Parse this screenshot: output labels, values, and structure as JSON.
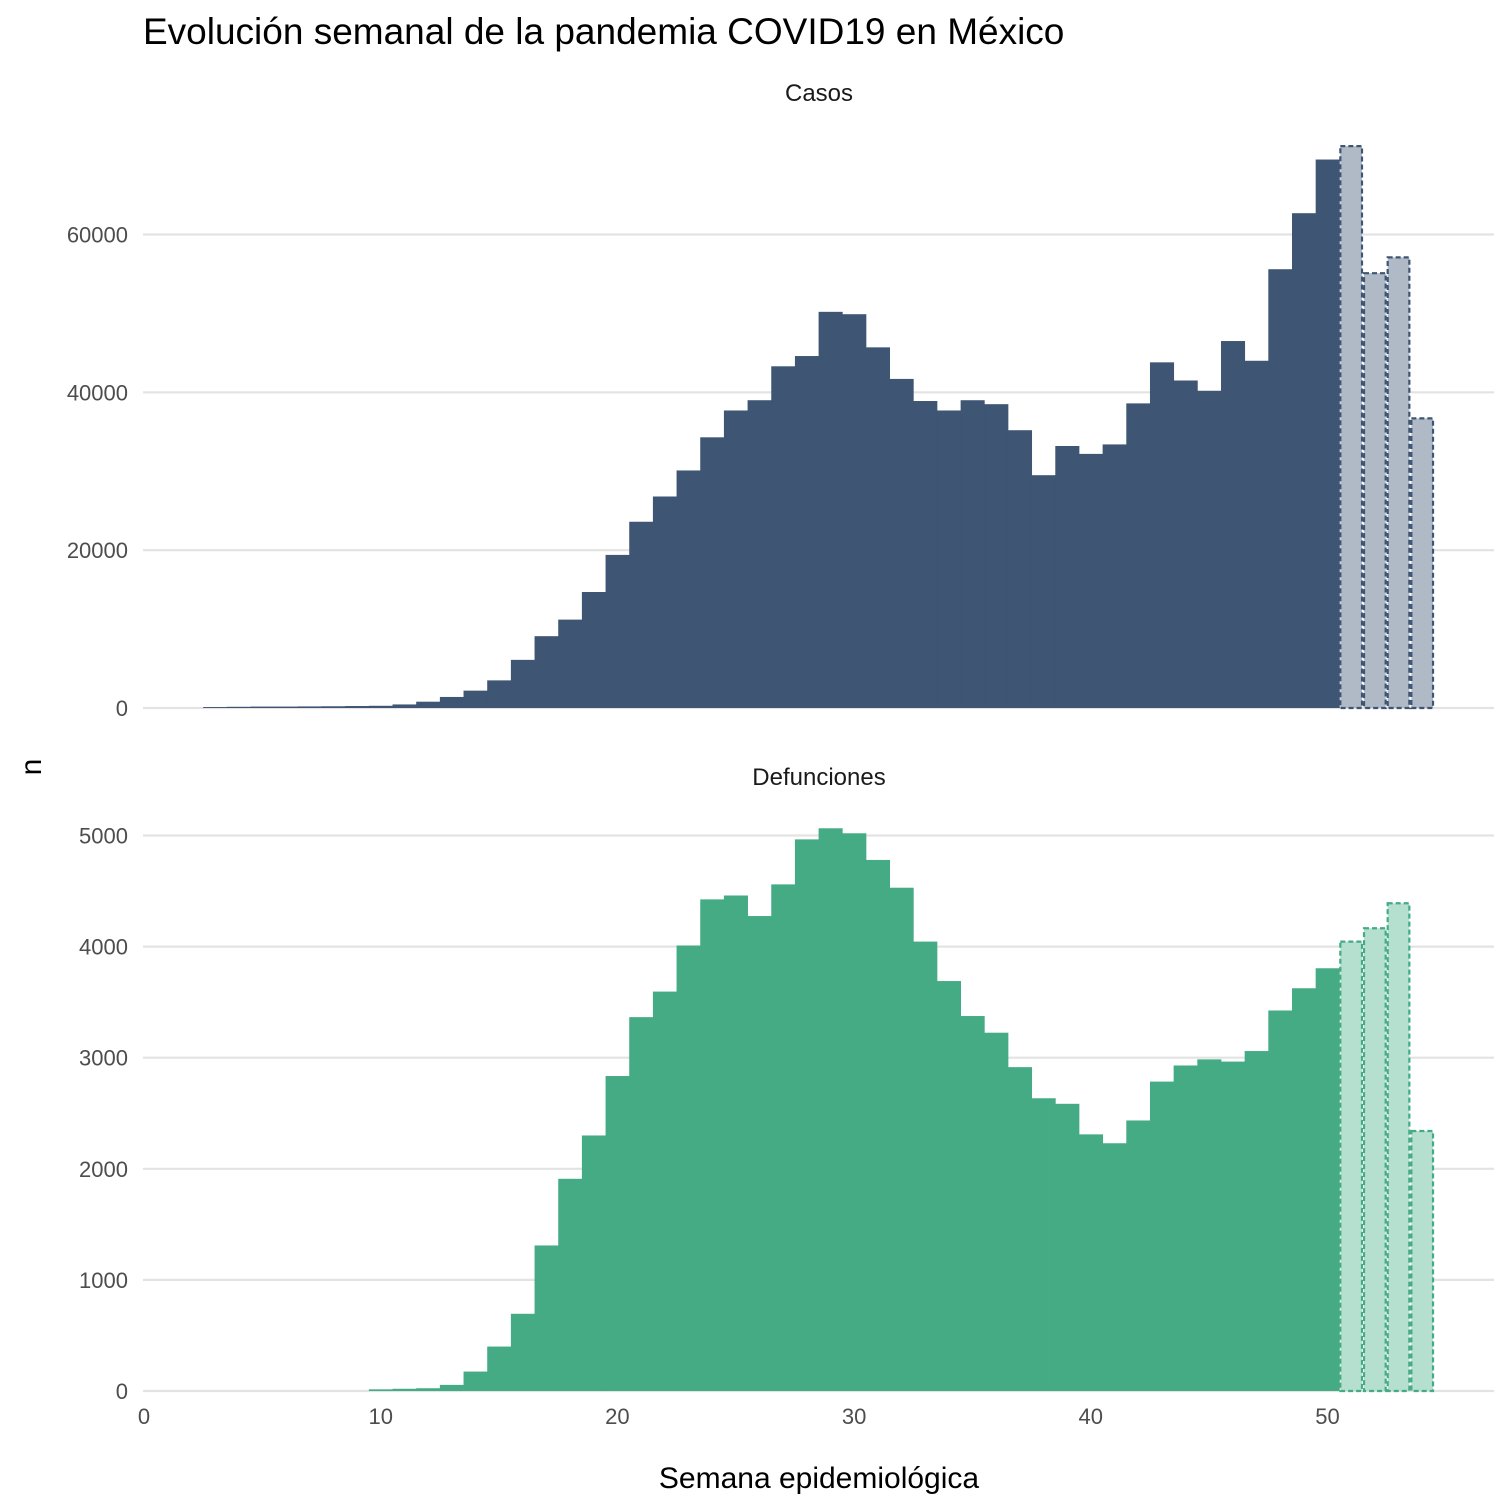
{
  "chart_data": {
    "type": "bar",
    "title": "Evolución semanal de la pandemia COVID19 en México",
    "xlabel": "Semana epidemiológica",
    "ylabel": "n",
    "xlim": [
      0,
      57
    ],
    "x_ticks": [
      0,
      10,
      20,
      30,
      40,
      50
    ],
    "grid": true,
    "legend": "none",
    "colors": {
      "casos": "#3e5573",
      "casos_estimated": "#b0b9c6",
      "defunciones": "#45ab85",
      "defunciones_estimated": "#b5dfcf",
      "grid": "#e3e3e3"
    },
    "panels": [
      {
        "name": "Casos",
        "ylim": [
          0,
          72000
        ],
        "y_ticks": [
          0,
          20000,
          40000,
          60000
        ],
        "weeks": [
          3,
          4,
          5,
          6,
          7,
          8,
          9,
          10,
          11,
          12,
          13,
          14,
          15,
          16,
          17,
          18,
          19,
          20,
          21,
          22,
          23,
          24,
          25,
          26,
          27,
          28,
          29,
          30,
          31,
          32,
          33,
          34,
          35,
          36,
          37,
          38,
          39,
          40,
          41,
          42,
          43,
          44,
          45,
          46,
          47,
          48,
          49,
          50,
          51,
          52,
          53,
          54
        ],
        "values": [
          120,
          150,
          180,
          180,
          200,
          220,
          250,
          280,
          450,
          800,
          1400,
          2200,
          3500,
          6100,
          9100,
          11200,
          14700,
          19400,
          23600,
          26800,
          30100,
          34300,
          37700,
          39000,
          43300,
          44600,
          50200,
          49900,
          45700,
          41700,
          38900,
          37700,
          39000,
          38500,
          35200,
          29500,
          33200,
          32200,
          33400,
          38600,
          43800,
          41500,
          40200,
          46500,
          44000,
          55600,
          62700,
          69500,
          71200,
          55100,
          57100,
          36700
        ],
        "estimated_from_week": 51
      },
      {
        "name": "Defunciones",
        "ylim": [
          0,
          5200
        ],
        "y_ticks": [
          0,
          1000,
          2000,
          3000,
          4000,
          5000
        ],
        "weeks": [
          10,
          11,
          12,
          13,
          14,
          15,
          16,
          17,
          18,
          19,
          20,
          21,
          22,
          23,
          24,
          25,
          26,
          27,
          28,
          29,
          30,
          31,
          32,
          33,
          34,
          35,
          36,
          37,
          38,
          39,
          40,
          41,
          42,
          43,
          44,
          45,
          46,
          47,
          48,
          49,
          50,
          51,
          52,
          53,
          54
        ],
        "values": [
          15,
          20,
          25,
          55,
          175,
          400,
          695,
          1310,
          1910,
          2300,
          2835,
          3365,
          3595,
          4010,
          4425,
          4460,
          4275,
          4560,
          4965,
          5065,
          5020,
          4780,
          4530,
          4045,
          3690,
          3375,
          3225,
          2915,
          2635,
          2585,
          2310,
          2230,
          2435,
          2785,
          2930,
          2985,
          2965,
          3060,
          3425,
          3625,
          3805,
          4045,
          4165,
          4390,
          2340
        ],
        "estimated_from_week": 51
      }
    ]
  }
}
